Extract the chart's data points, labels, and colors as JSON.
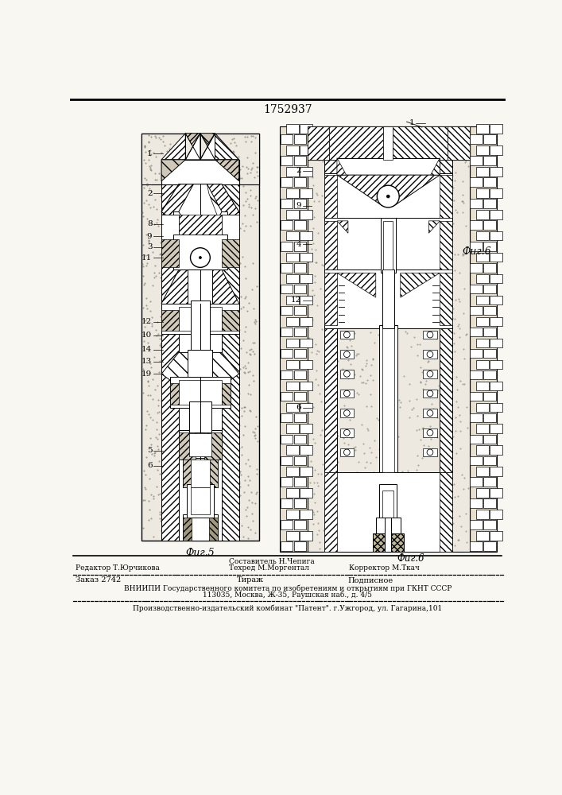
{
  "patent_number": "1752937",
  "bg": "#f8f7f2",
  "fig5_caption": "Фиг.5",
  "fig6_caption": "Фиг.6",
  "editor_label": "Редактор Т.Юрчикова",
  "compiler_label": "Составитель Н.Чепига",
  "techred_label": "Техред М.Моргентал",
  "corrector_label": "Корректор М.Ткач",
  "order_label": "Заказ 2742",
  "tirage_label": "Тираж",
  "podpisnoe_label": "Подписное",
  "vniipи_line1": "ВНИИПИ Государственного комитета по изобретениям и открытиям при ГКНТ СССР",
  "vniipи_line2": "113035, Москва, Ж-35, Раушская наб., д. 4/5",
  "patent_line": "Производственно-издательский комбинат \"Патент\". г.Ужгород, ул. Гагарина,101"
}
